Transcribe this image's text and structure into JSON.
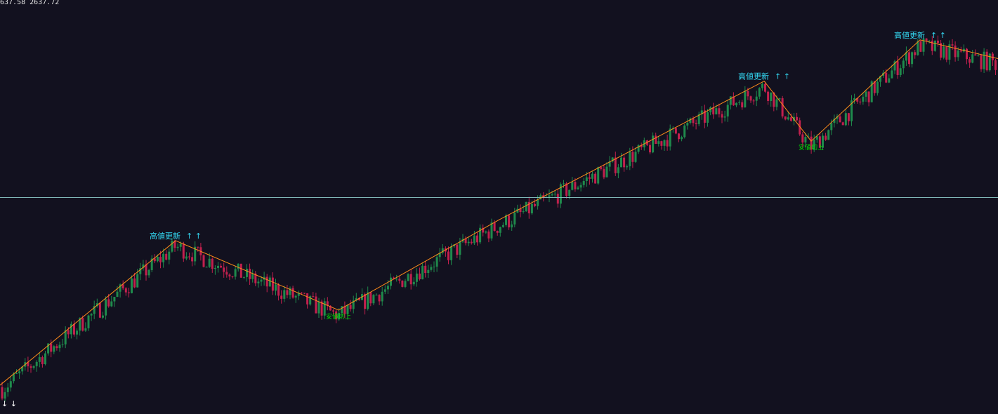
{
  "header": {
    "price_readout": "637.58 2637.72"
  },
  "colors": {
    "background": "#12111f",
    "bull": "#1f8a4c",
    "bear": "#c2204e",
    "zigzag": "#ff8c1a",
    "hline": "#7fb8b8",
    "high_label": "#33d6f0",
    "low_label": "#00e000"
  },
  "chart_data": {
    "type": "candlestick",
    "title": "",
    "xlabel": "",
    "ylabel": "",
    "grid": false,
    "ylim": [
      0,
      100
    ],
    "series": [
      {
        "kind": "ohlc",
        "generated_from": "zigzag",
        "seed": 7
      },
      {
        "kind": "zigzag",
        "points": [
          [
            0,
            3
          ],
          [
            250,
            41.5
          ],
          [
            482,
            23
          ],
          [
            710,
            47
          ],
          [
            1088,
            84
          ],
          [
            1155,
            68
          ],
          [
            1310,
            95
          ],
          [
            1421,
            90
          ]
        ]
      },
      {
        "kind": "hline",
        "value": 53
      }
    ],
    "annotations": [
      {
        "text": "高値更新",
        "x": 250,
        "y": 41.5,
        "kind": "high"
      },
      {
        "text": "↑ ↑",
        "x": 250,
        "y": 41.5,
        "kind": "high_arrows"
      },
      {
        "text": "高値更新",
        "x": 1088,
        "y": 84,
        "kind": "high"
      },
      {
        "text": "↑ ↑",
        "x": 1088,
        "y": 84,
        "kind": "high_arrows"
      },
      {
        "text": "高値更新",
        "x": 1310,
        "y": 95,
        "kind": "high"
      },
      {
        "text": "↑ ↑",
        "x": 1310,
        "y": 95,
        "kind": "high_arrows"
      },
      {
        "text": "安値切上",
        "x": 482,
        "y": 23,
        "kind": "low"
      },
      {
        "text": "安値切上",
        "x": 1155,
        "y": 68,
        "kind": "low"
      },
      {
        "text": "↓ ↓",
        "x": 5,
        "y": 0,
        "kind": "down_arrows"
      }
    ]
  }
}
